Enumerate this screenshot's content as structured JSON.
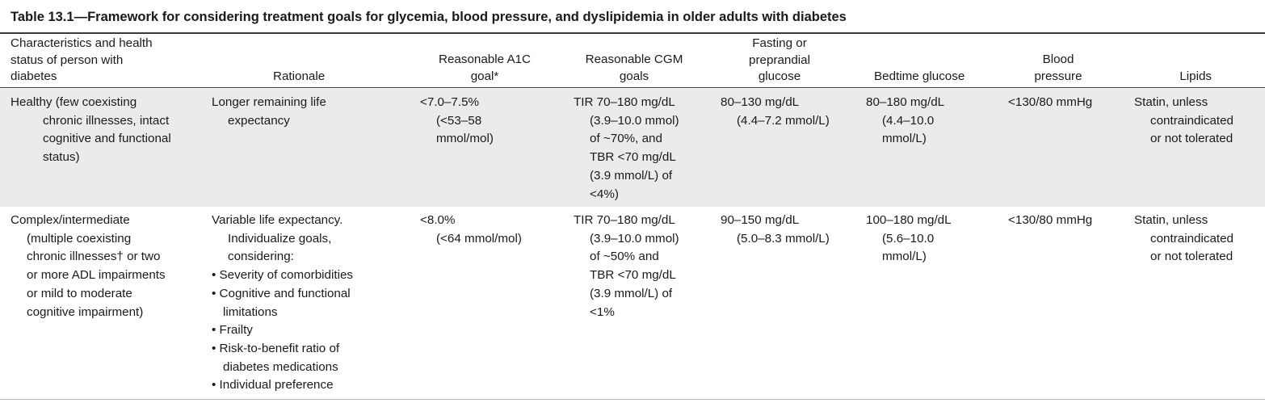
{
  "title": "Table 13.1—Framework for considering treatment goals for glycemia, blood pressure, and dyslipidemia in older adults with diabetes",
  "headers": {
    "characteristics": [
      "Characteristics and health",
      "status of person with",
      "diabetes"
    ],
    "rationale": "Rationale",
    "a1c": [
      "Reasonable A1C",
      "goal*"
    ],
    "cgm": [
      "Reasonable CGM",
      "goals"
    ],
    "fasting": [
      "Fasting or",
      "preprandial",
      "glucose"
    ],
    "bedtime": "Bedtime glucose",
    "bp": [
      "Blood",
      "pressure"
    ],
    "lipids": "Lipids"
  },
  "rows": [
    {
      "characteristics": [
        "Healthy (few coexisting",
        "chronic illnesses, intact",
        "cognitive and functional",
        "status)"
      ],
      "rationale": [
        "Longer remaining life",
        "expectancy"
      ],
      "a1c": [
        "<7.0–7.5%",
        "(<53–58",
        "mmol/mol)"
      ],
      "cgm": [
        "TIR 70–180 mg/dL",
        "(3.9–10.0 mmol)",
        "of ~70%, and",
        "TBR <70 mg/dL",
        "(3.9 mmol/L) of",
        "<4%)"
      ],
      "fasting": [
        "80–130 mg/dL",
        "(4.4–7.2 mmol/L)"
      ],
      "bedtime": [
        "80–180 mg/dL",
        "(4.4–10.0",
        "mmol/L)"
      ],
      "bp": "<130/80 mmHg",
      "lipids": [
        "Statin, unless",
        "contraindicated",
        "or not tolerated"
      ]
    },
    {
      "characteristics": [
        "Complex/intermediate",
        "(multiple coexisting",
        "chronic illnesses† or two",
        "or more ADL impairments",
        "or mild to moderate",
        "cognitive impairment)"
      ],
      "rationale_intro": [
        "Variable life expectancy.",
        "Individualize goals,",
        "considering:"
      ],
      "rationale_bullets": [
        [
          "Severity of comorbidities"
        ],
        [
          "Cognitive and functional",
          "limitations"
        ],
        [
          "Frailty"
        ],
        [
          "Risk-to-benefit ratio of",
          "diabetes medications"
        ],
        [
          "Individual preference"
        ]
      ],
      "a1c": [
        "<8.0%",
        "(<64 mmol/mol)"
      ],
      "cgm": [
        "TIR 70–180 mg/dL",
        "(3.9–10.0 mmol)",
        "of ~50% and",
        "TBR <70 mg/dL",
        "(3.9 mmol/L) of",
        "<1%"
      ],
      "fasting": [
        "90–150 mg/dL",
        "(5.0–8.3 mmol/L)"
      ],
      "bedtime": [
        "100–180 mg/dL",
        "(5.6–10.0",
        "mmol/L)"
      ],
      "bp": "<130/80 mmHg",
      "lipids": [
        "Statin, unless",
        "contraindicated",
        "or not tolerated"
      ]
    }
  ]
}
